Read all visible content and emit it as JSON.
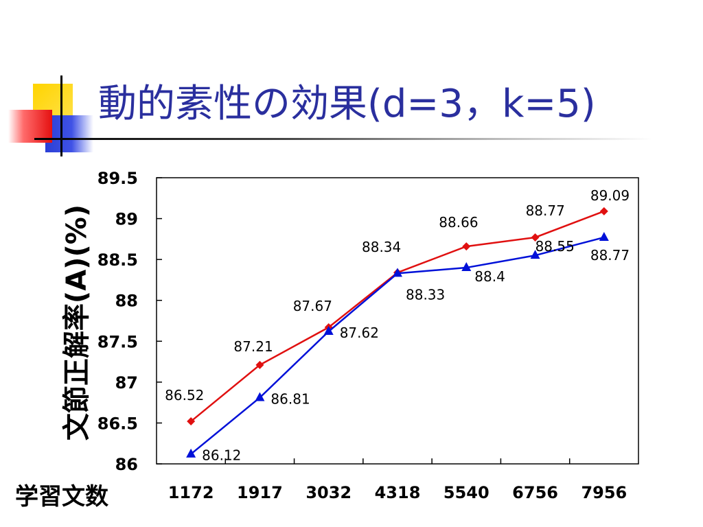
{
  "slide": {
    "title": "動的素性の効果(d=3，k=5)"
  },
  "colors": {
    "series_a": "#e01010",
    "series_b": "#0010d8",
    "title": "#2a2f9e"
  },
  "chart_data": {
    "type": "line",
    "title": "",
    "xlabel": "学習文数",
    "ylabel": "文節正解率(A)(%)",
    "categories": [
      "1172",
      "1917",
      "3032",
      "4318",
      "5540",
      "6756",
      "7956"
    ],
    "ylim": [
      86,
      89.5
    ],
    "yticks": [
      "86",
      "86.5",
      "87",
      "87.5",
      "88",
      "88.5",
      "89",
      "89.5"
    ],
    "grid": false,
    "legend": "none",
    "series": [
      {
        "marker": "diamond",
        "values": [
          86.52,
          87.21,
          87.67,
          88.34,
          88.66,
          88.77,
          89.09
        ],
        "labels": [
          "86.52",
          "87.21",
          "87.67",
          "88.34",
          "88.66",
          "88.77",
          "89.09"
        ]
      },
      {
        "marker": "triangle",
        "values": [
          86.12,
          86.81,
          87.62,
          88.33,
          88.4,
          88.55,
          88.77
        ],
        "labels": [
          "86.12",
          "86.81",
          "87.62",
          "88.33",
          "88.4",
          "88.55",
          "88.77"
        ]
      }
    ]
  }
}
